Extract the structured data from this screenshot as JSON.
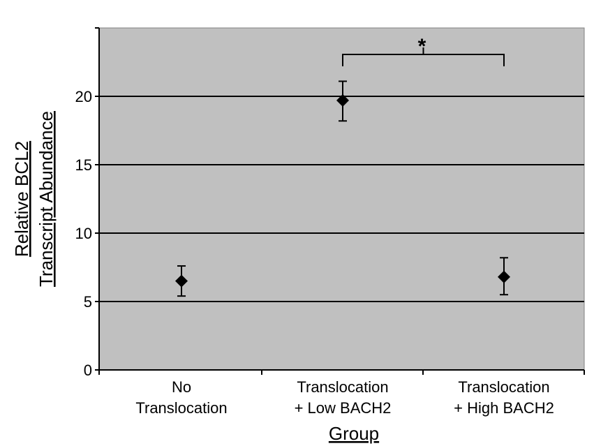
{
  "chart_data": {
    "type": "scatter",
    "categories": [
      [
        "No",
        "Translocation"
      ],
      [
        "Translocation",
        "+ Low BACH2"
      ],
      [
        "Translocation",
        "+ High BACH2"
      ]
    ],
    "values": [
      6.5,
      19.7,
      6.8
    ],
    "error_low": [
      5.4,
      18.2,
      5.5
    ],
    "error_high": [
      7.6,
      21.1,
      8.2
    ],
    "xlabel": "Group",
    "ylabel_lines": [
      "Relative BCL2",
      "Transcript Abundance"
    ],
    "ylim": [
      0,
      25
    ],
    "yticks": [
      0,
      5,
      10,
      15,
      20
    ],
    "grid": true,
    "significance": {
      "from_category": 1,
      "to_category": 2,
      "label": "*"
    },
    "colors": {
      "plot_background": "#c0c0c0",
      "marker": "#000000",
      "gridline": "#000000"
    }
  }
}
